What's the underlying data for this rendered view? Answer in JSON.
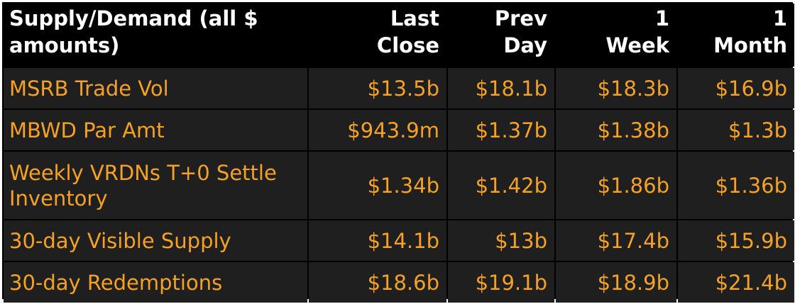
{
  "table": {
    "columns": [
      "Supply/Demand (all $\namounts)",
      "Last\nClose",
      "Prev\nDay",
      "1\nWeek",
      "1\nMonth"
    ],
    "rows": [
      [
        "MSRB Trade Vol",
        "$13.5b",
        "$18.1b",
        "$18.3b",
        "$16.9b"
      ],
      [
        "MBWD Par Amt",
        "$943.9m",
        "$1.37b",
        "$1.38b",
        "$1.3b"
      ],
      [
        "Weekly VRDNs T+0 Settle Inventory",
        "$1.34b",
        "$1.42b",
        "$1.86b",
        "$1.36b"
      ],
      [
        "30-day Visible Supply",
        "$14.1b",
        "$13b",
        "$17.4b",
        "$15.9b"
      ],
      [
        "30-day Redemptions",
        "$18.6b",
        "$19.1b",
        "$18.9b",
        "$21.4b"
      ]
    ]
  },
  "colors": {
    "header_bg": "#000000",
    "header_text": "#ffffff",
    "cell_bg": "#1f1f1f",
    "value_text": "#f5a125"
  }
}
